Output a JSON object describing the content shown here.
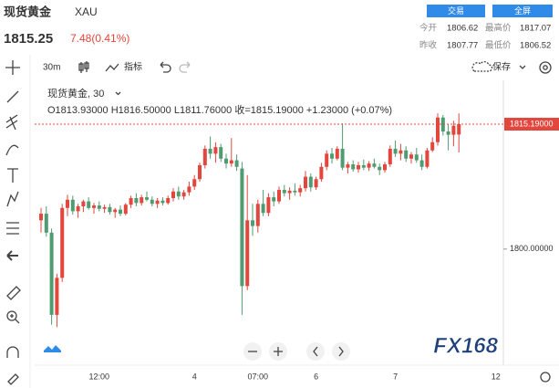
{
  "header": {
    "name": "现货黄金",
    "code": "XAU",
    "trade_button": "交易",
    "fullscreen_button": "全屏",
    "price": "1815.25",
    "change": "7.48(0.41%)",
    "stats": [
      [
        "今开",
        "1806.62",
        "最高价",
        "1817.07"
      ],
      [
        "昨收",
        "1807.77",
        "最低价",
        "1806.52"
      ]
    ]
  },
  "toolbar": {
    "interval": "30m",
    "indicators": "指标",
    "save": "保存"
  },
  "watermark": "FX168",
  "chart_data": {
    "type": "candlestick",
    "title": "现货黄金, 30",
    "ohlc_text": "O1813.93000  H1816.50000  L1811.76000  收=1815.19000  +1.23000  (+0.07%)",
    "categories": [
      null,
      null,
      null,
      null,
      null,
      null,
      null,
      null,
      null,
      null,
      null,
      "12:00",
      null,
      null,
      null,
      null,
      null,
      null,
      null,
      null,
      null,
      null,
      null,
      null,
      null,
      null,
      null,
      null,
      null,
      "4",
      null,
      null,
      null,
      null,
      null,
      null,
      null,
      null,
      null,
      null,
      null,
      "07:00",
      null,
      null,
      null,
      null,
      null,
      null,
      null,
      null,
      null,
      null,
      "6",
      null,
      null,
      null,
      null,
      null,
      null,
      null,
      null,
      null,
      null,
      null,
      null,
      null,
      null,
      "7",
      null,
      null,
      null,
      null,
      null,
      null,
      null,
      null,
      null,
      null,
      null,
      null,
      null,
      null,
      null,
      null,
      null,
      null,
      "12",
      null
    ],
    "open": [
      1803.5,
      1804.3,
      1802.0,
      1792.0,
      1796.5,
      1805.0,
      1806.0,
      1804.6,
      1805.2,
      1805.8,
      1805.0,
      1805.3,
      1804.9,
      1805.1,
      1804.5,
      1804.8,
      1804.3,
      1805.4,
      1806.2,
      1805.6,
      1806.3,
      1806.0,
      1805.5,
      1805.9,
      1805.6,
      1806.2,
      1807.0,
      1806.4,
      1806.9,
      1807.6,
      1808.5,
      1810.2,
      1812.2,
      1811.6,
      1812.4,
      1811.0,
      1810.4,
      1810.8,
      1809.8,
      1795.5,
      1803.5,
      1802.8,
      1805.5,
      1804.4,
      1806.3,
      1805.8,
      1807.2,
      1806.8,
      1807.1,
      1806.9,
      1807.4,
      1808.8,
      1807.5,
      1808.5,
      1810.0,
      1811.6,
      1811.0,
      1812.2,
      1809.9,
      1810.3,
      1809.7,
      1810.2,
      1809.9,
      1810.4,
      1810.0,
      1809.6,
      1810.3,
      1812.2,
      1811.6,
      1812.0,
      1811.0,
      1811.5,
      1810.8,
      1810.0,
      1812.0,
      1813.0,
      1816.0,
      1814.3,
      1813.9,
      1813.93,
      null,
      null,
      null,
      null,
      null,
      null,
      null,
      null
    ],
    "high": [
      1805.0,
      1805.2,
      1802.5,
      1797.0,
      1805.5,
      1806.6,
      1806.5,
      1805.5,
      1806.0,
      1806.3,
      1805.6,
      1805.8,
      1805.4,
      1805.5,
      1805.0,
      1805.3,
      1805.6,
      1806.5,
      1806.8,
      1806.6,
      1807.0,
      1806.4,
      1806.2,
      1806.3,
      1806.5,
      1807.4,
      1807.6,
      1807.2,
      1808.2,
      1809.0,
      1810.5,
      1812.6,
      1813.7,
      1813.0,
      1812.8,
      1811.6,
      1813.5,
      1811.5,
      1810.6,
      1809.0,
      1805.5,
      1806.0,
      1807.2,
      1806.8,
      1807.0,
      1807.6,
      1807.8,
      1807.5,
      1808.0,
      1807.8,
      1809.5,
      1809.2,
      1808.8,
      1810.5,
      1812.0,
      1812.3,
      1812.5,
      1815.3,
      1810.6,
      1810.8,
      1810.6,
      1810.9,
      1810.7,
      1811.0,
      1810.4,
      1810.6,
      1812.6,
      1813.2,
      1812.8,
      1812.5,
      1811.8,
      1812.3,
      1811.5,
      1812.3,
      1813.6,
      1816.5,
      1816.3,
      1815.2,
      1815.6,
      1816.5,
      null,
      null,
      null,
      null,
      null,
      null,
      null,
      null
    ],
    "low": [
      1802.0,
      1801.5,
      1790.8,
      1790.5,
      1796.0,
      1804.0,
      1804.2,
      1803.8,
      1804.5,
      1804.8,
      1804.3,
      1804.6,
      1804.4,
      1804.2,
      1803.8,
      1804.0,
      1804.1,
      1805.0,
      1805.2,
      1805.3,
      1805.8,
      1805.2,
      1805.0,
      1805.3,
      1805.4,
      1805.8,
      1806.0,
      1806.0,
      1806.5,
      1807.2,
      1808.2,
      1809.8,
      1811.0,
      1810.5,
      1810.6,
      1809.8,
      1810.0,
      1809.5,
      1792.0,
      1795.0,
      1801.6,
      1802.0,
      1804.0,
      1804.0,
      1805.2,
      1805.5,
      1806.4,
      1806.0,
      1806.5,
      1806.4,
      1807.0,
      1807.0,
      1807.2,
      1808.2,
      1809.6,
      1810.4,
      1810.8,
      1809.6,
      1809.2,
      1809.4,
      1809.3,
      1809.6,
      1809.5,
      1809.8,
      1809.0,
      1809.3,
      1810.0,
      1811.2,
      1810.8,
      1810.6,
      1810.4,
      1810.5,
      1809.6,
      1809.8,
      1811.8,
      1812.6,
      1813.8,
      1812.0,
      1812.5,
      1811.76,
      null,
      null,
      null,
      null,
      null,
      null,
      null,
      null
    ],
    "close": [
      1804.3,
      1802.0,
      1792.0,
      1796.5,
      1805.0,
      1806.0,
      1804.6,
      1805.2,
      1805.8,
      1805.0,
      1805.3,
      1804.9,
      1805.1,
      1804.5,
      1804.8,
      1804.3,
      1805.4,
      1806.2,
      1805.6,
      1806.3,
      1806.0,
      1805.5,
      1805.9,
      1805.6,
      1806.2,
      1807.0,
      1806.4,
      1806.9,
      1807.6,
      1808.5,
      1810.2,
      1812.2,
      1811.6,
      1812.4,
      1811.0,
      1810.4,
      1810.8,
      1810.0,
      1795.5,
      1803.5,
      1802.8,
      1805.5,
      1804.4,
      1806.3,
      1805.8,
      1807.2,
      1806.8,
      1807.1,
      1806.9,
      1807.4,
      1808.8,
      1807.5,
      1808.5,
      1810.0,
      1811.6,
      1811.0,
      1812.2,
      1809.9,
      1810.3,
      1809.7,
      1810.2,
      1809.9,
      1810.4,
      1810.0,
      1809.6,
      1810.3,
      1812.2,
      1811.6,
      1812.0,
      1811.0,
      1811.5,
      1810.8,
      1810.0,
      1812.0,
      1813.0,
      1816.0,
      1814.3,
      1813.9,
      1815.0,
      1815.19,
      null,
      null,
      null,
      null,
      null,
      null,
      null,
      null
    ],
    "up_color": "#e2463d",
    "down_color": "#4f9b72",
    "ylim": [
      1786.1,
      1820.3
    ],
    "yticks": [
      {
        "value": 1800,
        "label": "1800.00000"
      }
    ],
    "last_price": {
      "value": 1815.19,
      "label": "1815.19000"
    },
    "grid": false
  }
}
